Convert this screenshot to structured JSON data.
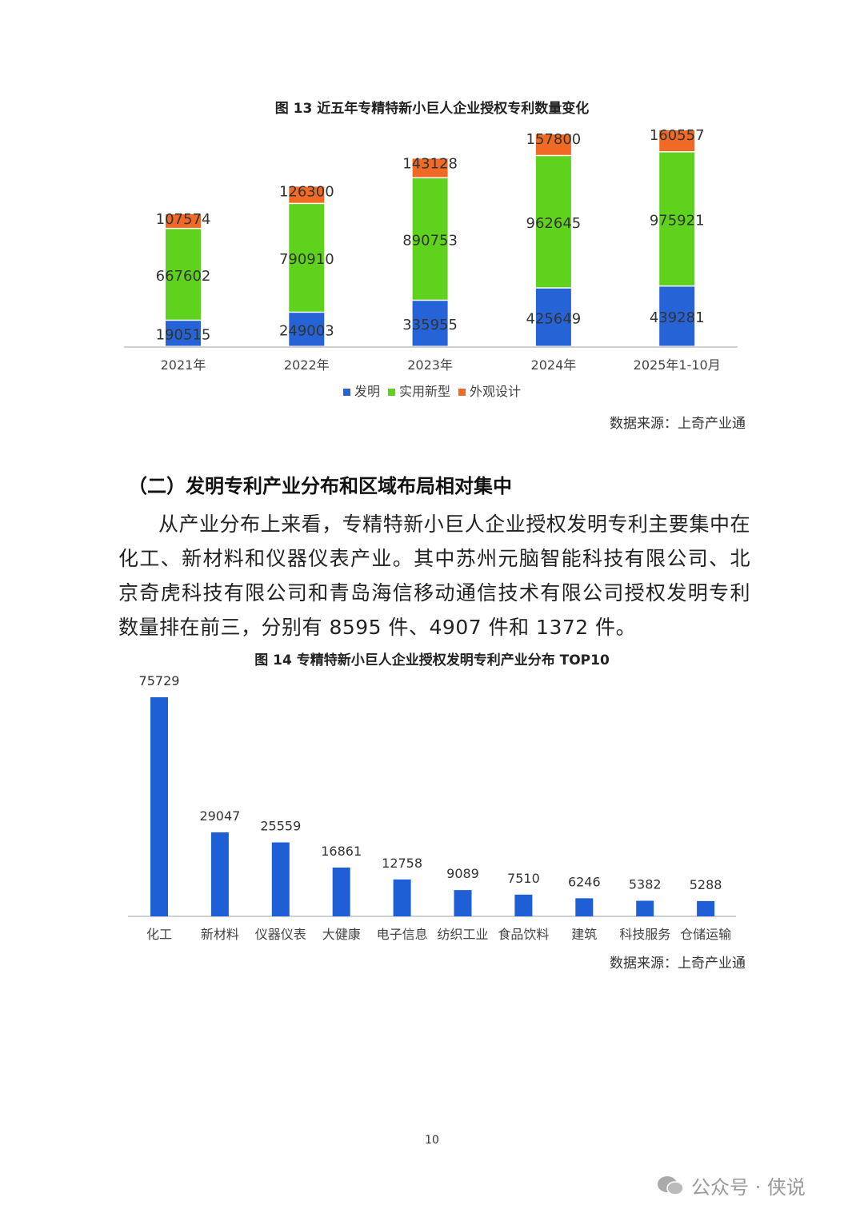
{
  "chart_data": [
    {
      "type": "bar",
      "stacked": true,
      "title": "图 13  近五年专精特新小巨人企业授权专利数量变化",
      "categories": [
        "2021年",
        "2022年",
        "2023年",
        "2024年",
        "2025年1-10月"
      ],
      "series": [
        {
          "name": "发明",
          "color": "#2563d6",
          "values": [
            190515,
            249003,
            335955,
            425649,
            439281
          ]
        },
        {
          "name": "实用新型",
          "color": "#5fd21e",
          "values": [
            667602,
            790910,
            890753,
            962645,
            975921
          ]
        },
        {
          "name": "外观设计",
          "color": "#f06a25",
          "values": [
            107574,
            126300,
            143128,
            157800,
            160557
          ]
        }
      ],
      "legend": "bottom",
      "grid": false,
      "source": "数据来源：上奇产业通"
    },
    {
      "type": "bar",
      "title": "图 14  专精特新小巨人企业授权发明专利产业分布 TOP10",
      "categories": [
        "化工",
        "新材料",
        "仪器仪表",
        "大健康",
        "电子信息",
        "纺织工业",
        "食品饮料",
        "建筑",
        "科技服务",
        "仓储运输"
      ],
      "values": [
        75729,
        29047,
        25559,
        16861,
        12758,
        9089,
        7510,
        6246,
        5382,
        5288
      ],
      "color": "#1f5fd6",
      "grid": false,
      "source": "数据来源：上奇产业通"
    }
  ],
  "section": {
    "heading": "（二）发明专利产业分布和区域布局相对集中",
    "paragraph": "从产业分布上来看，专精特新小巨人企业授权发明专利主要集中在化工、新材料和仪器仪表产业。其中苏州元脑智能科技有限公司、北京奇虎科技有限公司和青岛海信移动通信技术有限公司授权发明专利数量排在前三，分别有 8595 件、4907 件和 1372 件。"
  },
  "page_number": "10",
  "watermark": "公众号 · 侠说"
}
